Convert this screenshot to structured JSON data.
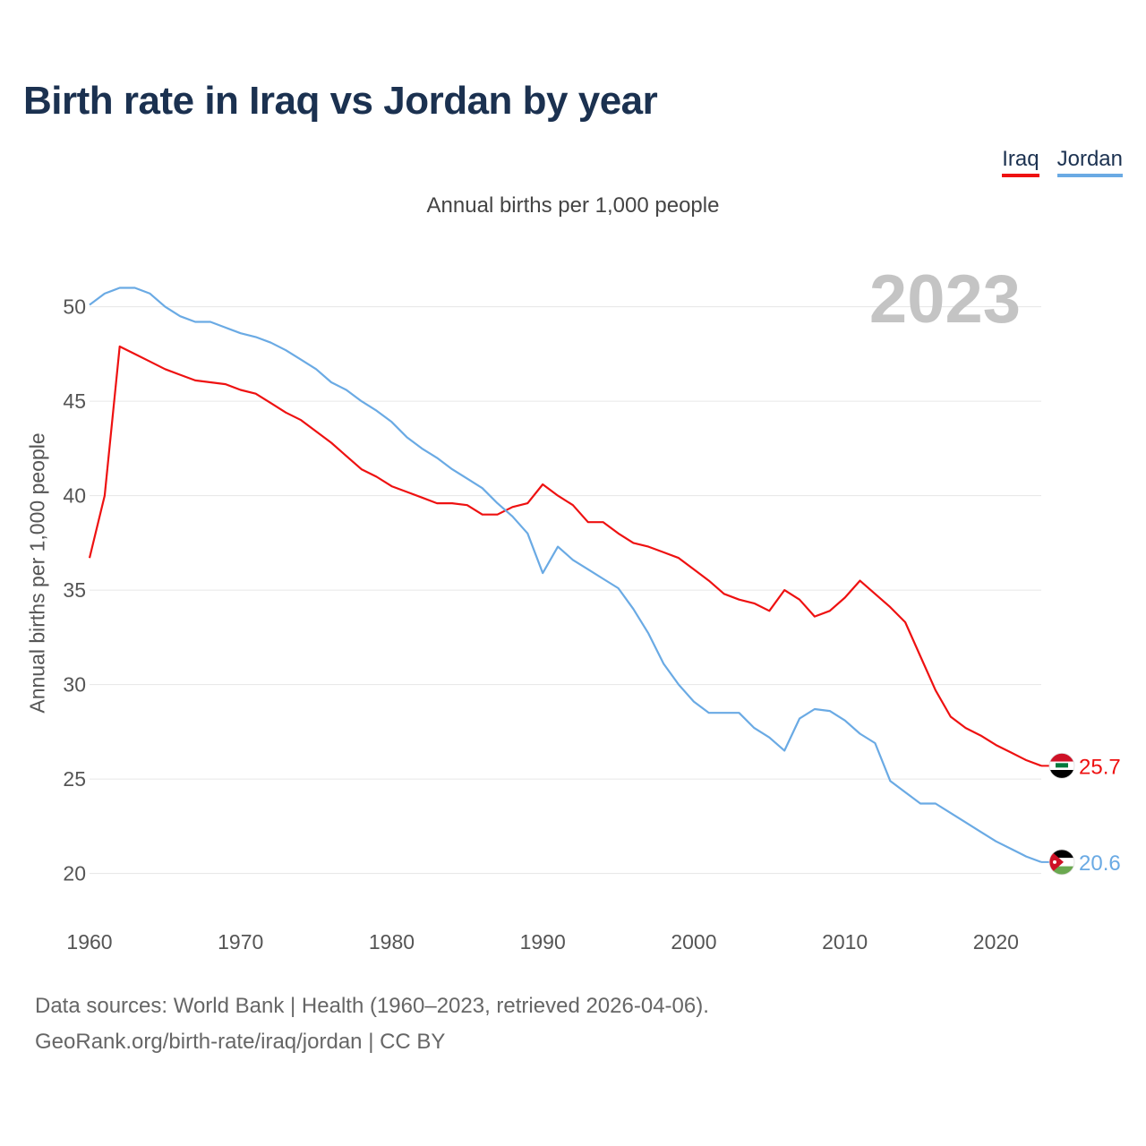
{
  "chart_data": {
    "type": "line",
    "title": "Birth rate in Iraq vs Jordan by year",
    "subtitle": "Annual births per 1,000 people",
    "ylabel": "Annual births per 1,000 people",
    "xlabel": "",
    "year_watermark": "2023",
    "xlim": [
      1960,
      2023
    ],
    "ylim": [
      18.7,
      51.5
    ],
    "yticks": [
      20,
      25,
      30,
      35,
      40,
      45,
      50
    ],
    "xticks": [
      1960,
      1970,
      1980,
      1990,
      2000,
      2010,
      2020
    ],
    "x_start": 1960,
    "series": [
      {
        "name": "Iraq",
        "color": "#ee1111",
        "end_label": "25.7",
        "flag": "iraq-flag",
        "values": [
          36.7,
          40.0,
          47.9,
          47.5,
          47.1,
          46.7,
          46.4,
          46.1,
          46.0,
          45.9,
          45.6,
          45.4,
          44.9,
          44.4,
          44.0,
          43.4,
          42.8,
          42.1,
          41.4,
          41.0,
          40.5,
          40.2,
          39.9,
          39.6,
          39.6,
          39.5,
          39.0,
          39.0,
          39.4,
          39.6,
          40.6,
          40.0,
          39.5,
          38.6,
          38.6,
          38.0,
          37.5,
          37.3,
          37.0,
          36.7,
          36.1,
          35.5,
          34.8,
          34.5,
          34.3,
          33.9,
          35.0,
          34.5,
          33.6,
          33.9,
          34.6,
          35.5,
          34.8,
          34.1,
          33.3,
          31.5,
          29.7,
          28.3,
          27.7,
          27.3,
          26.8,
          26.4,
          26.0,
          25.7
        ]
      },
      {
        "name": "Jordan",
        "color": "#6aaae4",
        "end_label": "20.6",
        "flag": "jordan-flag",
        "values": [
          50.1,
          50.7,
          51.0,
          51.0,
          50.7,
          50.0,
          49.5,
          49.2,
          49.2,
          48.9,
          48.6,
          48.4,
          48.1,
          47.7,
          47.2,
          46.7,
          46.0,
          45.6,
          45.0,
          44.5,
          43.9,
          43.1,
          42.5,
          42.0,
          41.4,
          40.9,
          40.4,
          39.6,
          38.9,
          38.0,
          35.9,
          37.3,
          36.6,
          36.1,
          35.6,
          35.1,
          34.0,
          32.7,
          31.1,
          30.0,
          29.1,
          28.5,
          28.5,
          28.5,
          27.7,
          27.2,
          26.5,
          28.2,
          28.7,
          28.6,
          28.1,
          27.4,
          26.9,
          24.9,
          24.3,
          23.7,
          23.7,
          23.2,
          22.7,
          22.2,
          21.7,
          21.3,
          20.9,
          20.6
        ]
      }
    ]
  },
  "legend": {
    "iraq_label": "Iraq",
    "jordan_label": "Jordan"
  },
  "source": {
    "line1": "Data sources: World Bank | Health (1960–2023, retrieved 2026-04-06).",
    "line2": "GeoRank.org/birth-rate/iraq/jordan | CC BY"
  }
}
